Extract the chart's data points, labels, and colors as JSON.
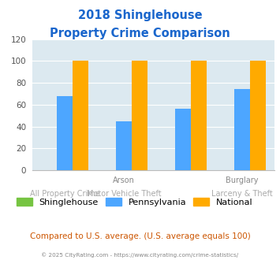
{
  "title_line1": "2018 Shinglehouse",
  "title_line2": "Property Crime Comparison",
  "shinglehouse": [
    0,
    0,
    0,
    0
  ],
  "pennsylvania": [
    68,
    45,
    56,
    74
  ],
  "national": [
    100,
    100,
    100,
    100
  ],
  "colors": {
    "shinglehouse": "#76c442",
    "pennsylvania": "#4da6ff",
    "national": "#ffaa00"
  },
  "ylim": [
    0,
    120
  ],
  "yticks": [
    0,
    20,
    40,
    60,
    80,
    100,
    120
  ],
  "title_color": "#1a66cc",
  "axis_bg": "#dce9f0",
  "top_labels": [
    "",
    "Arson",
    "",
    "Burglary"
  ],
  "bottom_labels": [
    "All Property Crime",
    "Motor Vehicle Theft",
    "",
    "Larceny & Theft"
  ],
  "top_label_color": "#888888",
  "bottom_label_color": "#aaaaaa",
  "legend_labels": [
    "Shinglehouse",
    "Pennsylvania",
    "National"
  ],
  "note": "Compared to U.S. average. (U.S. average equals 100)",
  "note_color": "#cc5500",
  "copyright": "© 2025 CityRating.com - https://www.cityrating.com/crime-statistics/",
  "copyright_color": "#888888"
}
